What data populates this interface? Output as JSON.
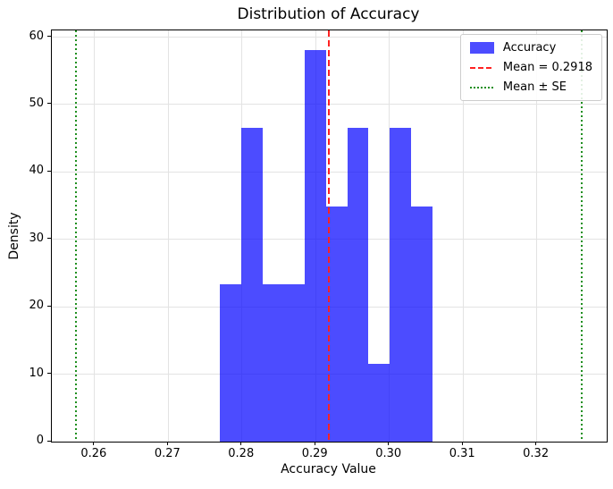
{
  "figure": {
    "title": "Distribution of Accuracy",
    "xlabel": "Accuracy Value",
    "ylabel": "Density"
  },
  "chart_data": {
    "type": "bar",
    "subtype": "histogram",
    "title": "Distribution of Accuracy",
    "xlabel": "Accuracy Value",
    "ylabel": "Density",
    "series_label": "Accuracy",
    "bin_edges": [
      0.277,
      0.27988,
      0.28276,
      0.28564,
      0.28852,
      0.2914,
      0.29428,
      0.29716,
      0.30004,
      0.30292,
      0.3058
    ],
    "densities": [
      23.3,
      46.5,
      23.3,
      23.3,
      58.1,
      34.9,
      46.5,
      11.6,
      46.5,
      34.9
    ],
    "mean": 0.2918,
    "se": 0.0343,
    "mean_minus_se": 0.2575,
    "mean_plus_se": 0.3261,
    "xlim": [
      0.2542,
      0.3295
    ],
    "ylim": [
      0,
      61.0
    ],
    "xticks": [
      0.26,
      0.27,
      0.28,
      0.29,
      0.3,
      0.31,
      0.32
    ],
    "xtick_labels": [
      "0.26",
      "0.27",
      "0.28",
      "0.29",
      "0.30",
      "0.31",
      "0.32"
    ],
    "yticks": [
      0,
      10,
      20,
      30,
      40,
      50,
      60
    ],
    "ytick_labels": [
      "0",
      "10",
      "20",
      "30",
      "40",
      "50",
      "60"
    ],
    "grid": true,
    "legend_position": "upper right",
    "legend": [
      {
        "swatch": "patch",
        "label": "Accuracy"
      },
      {
        "swatch": "dash",
        "label": "Mean = 0.2918"
      },
      {
        "swatch": "dot",
        "label": "Mean ± SE"
      }
    ],
    "colors": {
      "bar_fill": "rgba(0,0,255,0.7)",
      "mean_line": "#ff2222",
      "se_line": "#1f8f1f",
      "grid": "#e3e3e3",
      "spine": "#000000"
    }
  }
}
